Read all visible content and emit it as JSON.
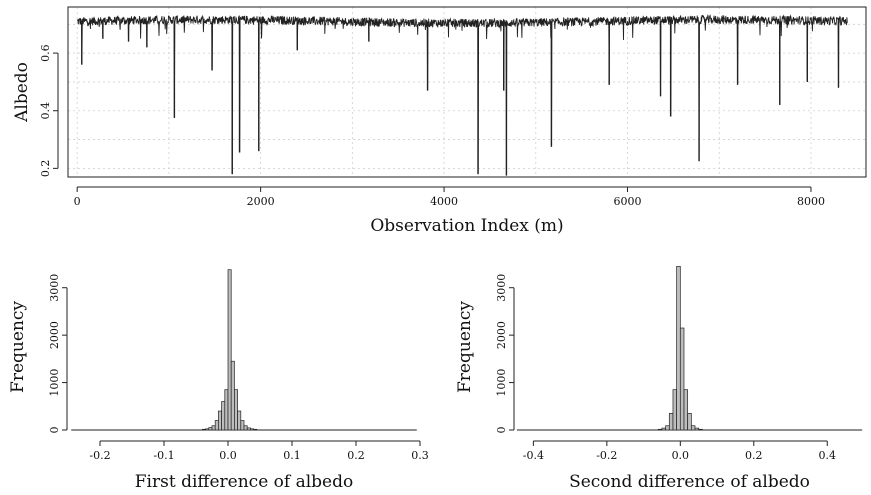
{
  "chart_data": [
    {
      "type": "line",
      "ylabel": "Albedo",
      "xlabel": "Observation Index (m)",
      "x_ticks": [
        0,
        2000,
        4000,
        6000,
        8000
      ],
      "y_ticks": [
        0.2,
        0.4,
        0.6
      ],
      "xlim": [
        -100,
        8600
      ],
      "ylim": [
        0.17,
        0.76
      ],
      "grid": true,
      "colors": {
        "line": "#222222"
      },
      "baseline": 0.71,
      "n_points": 8400,
      "dips": [
        {
          "x": 50,
          "y": 0.56
        },
        {
          "x": 280,
          "y": 0.65
        },
        {
          "x": 560,
          "y": 0.64
        },
        {
          "x": 760,
          "y": 0.62
        },
        {
          "x": 1060,
          "y": 0.375
        },
        {
          "x": 1470,
          "y": 0.54
        },
        {
          "x": 1690,
          "y": 0.18
        },
        {
          "x": 1770,
          "y": 0.255
        },
        {
          "x": 1980,
          "y": 0.26
        },
        {
          "x": 2400,
          "y": 0.61
        },
        {
          "x": 3180,
          "y": 0.64
        },
        {
          "x": 3820,
          "y": 0.47
        },
        {
          "x": 4370,
          "y": 0.18
        },
        {
          "x": 4650,
          "y": 0.47
        },
        {
          "x": 4680,
          "y": 0.175
        },
        {
          "x": 5170,
          "y": 0.275
        },
        {
          "x": 5800,
          "y": 0.49
        },
        {
          "x": 6360,
          "y": 0.45
        },
        {
          "x": 6470,
          "y": 0.38
        },
        {
          "x": 6780,
          "y": 0.225
        },
        {
          "x": 7200,
          "y": 0.49
        },
        {
          "x": 7660,
          "y": 0.42
        },
        {
          "x": 7960,
          "y": 0.5
        },
        {
          "x": 8300,
          "y": 0.48
        }
      ]
    },
    {
      "type": "bar",
      "subtype": "histogram",
      "xlabel": "First difference of albedo",
      "ylabel": "Frequency",
      "x_ticks": [
        -0.2,
        -0.1,
        0.0,
        0.1,
        0.2,
        0.3
      ],
      "y_ticks": [
        0,
        1000,
        2000,
        3000
      ],
      "xlim": [
        -0.25,
        0.3
      ],
      "ylim": [
        0,
        3500
      ],
      "bin_width": 0.005,
      "bins": [
        {
          "x0": -0.04,
          "count": 15
        },
        {
          "x0": -0.035,
          "count": 25
        },
        {
          "x0": -0.03,
          "count": 50
        },
        {
          "x0": -0.025,
          "count": 90
        },
        {
          "x0": -0.02,
          "count": 200
        },
        {
          "x0": -0.015,
          "count": 400
        },
        {
          "x0": -0.01,
          "count": 600
        },
        {
          "x0": -0.005,
          "count": 850
        },
        {
          "x0": 0.0,
          "count": 3380
        },
        {
          "x0": 0.005,
          "count": 1450
        },
        {
          "x0": 0.01,
          "count": 850
        },
        {
          "x0": 0.015,
          "count": 400
        },
        {
          "x0": 0.02,
          "count": 200
        },
        {
          "x0": 0.025,
          "count": 90
        },
        {
          "x0": 0.03,
          "count": 45
        },
        {
          "x0": 0.035,
          "count": 25
        },
        {
          "x0": 0.04,
          "count": 15
        }
      ]
    },
    {
      "type": "bar",
      "subtype": "histogram",
      "xlabel": "Second difference of albedo",
      "ylabel": "Frequency",
      "x_ticks": [
        -0.4,
        -0.2,
        0.0,
        0.2,
        0.4
      ],
      "y_ticks": [
        0,
        1000,
        2000,
        3000
      ],
      "xlim": [
        -0.45,
        0.5
      ],
      "ylim": [
        0,
        3500
      ],
      "bin_width": 0.01,
      "bins": [
        {
          "x0": -0.06,
          "count": 15
        },
        {
          "x0": -0.05,
          "count": 40
        },
        {
          "x0": -0.04,
          "count": 90
        },
        {
          "x0": -0.03,
          "count": 350
        },
        {
          "x0": -0.02,
          "count": 850
        },
        {
          "x0": -0.01,
          "count": 3450
        },
        {
          "x0": 0.0,
          "count": 2150
        },
        {
          "x0": 0.01,
          "count": 850
        },
        {
          "x0": 0.02,
          "count": 350
        },
        {
          "x0": 0.03,
          "count": 90
        },
        {
          "x0": 0.04,
          "count": 40
        },
        {
          "x0": 0.05,
          "count": 15
        }
      ]
    }
  ]
}
